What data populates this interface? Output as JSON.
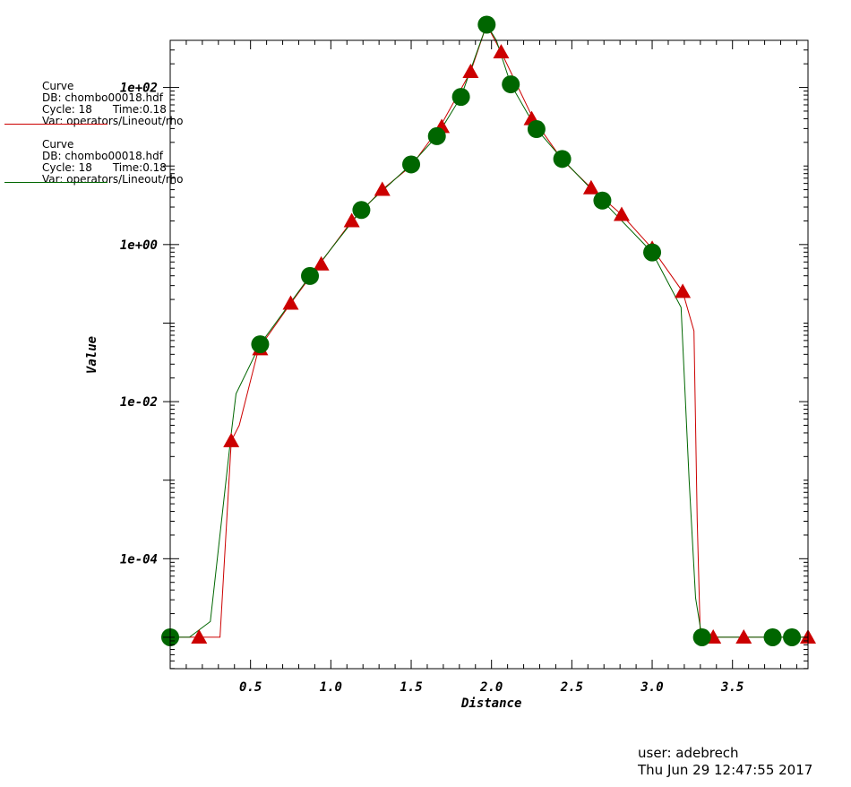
{
  "legend": [
    {
      "title": "Curve",
      "db": "DB: chombo00018.hdf",
      "cycle": "Cycle: 18",
      "time": "Time:0.18",
      "var": "Var: operators/Lineout/rho",
      "color": "#cc0000"
    },
    {
      "title": "Curve",
      "db": "DB: chombo00018.hdf",
      "cycle": "Cycle: 18",
      "time": "Time:0.18",
      "var": "Var: operators/Lineout/rho",
      "color": "#006600"
    }
  ],
  "footer": {
    "user": "user: adebrech",
    "datetime": "Thu Jun 29 12:47:55 2017"
  },
  "chart_data": {
    "type": "line",
    "xlabel": "Distance",
    "ylabel": "Value",
    "xlim": [
      0.0,
      3.97
    ],
    "ylim_log10": [
      -5.4,
      2.6
    ],
    "yscale": "log",
    "xticks": [
      0.5,
      1.0,
      1.5,
      2.0,
      2.5,
      3.0,
      3.5
    ],
    "xtick_labels": [
      "0.5",
      "1.0",
      "1.5",
      "2.0",
      "2.5",
      "3.0",
      "3.5"
    ],
    "yticks_log10": [
      -4,
      -2,
      0,
      2
    ],
    "ytick_labels": [
      "1e-04",
      "1e-02",
      "1e+00",
      "1e+02"
    ],
    "grid": false,
    "series": [
      {
        "color": "#cc0000",
        "marker": "triangle",
        "x": [
          0.0,
          0.18,
          0.31,
          0.38,
          0.43,
          0.55,
          0.75,
          0.93,
          1.13,
          1.32,
          1.5,
          1.68,
          1.87,
          1.97,
          2.06,
          2.26,
          2.44,
          2.62,
          2.81,
          3.0,
          3.19,
          3.26,
          3.28,
          3.3,
          3.38,
          3.57,
          3.75,
          3.88,
          3.97
        ],
        "y_log10": [
          -5.0,
          -5.0,
          -5.0,
          -2.5,
          -2.3,
          -1.33,
          -0.75,
          -0.25,
          0.3,
          0.7,
          1.0,
          1.5,
          2.2,
          2.8,
          2.45,
          1.6,
          1.08,
          0.72,
          0.38,
          -0.05,
          -0.6,
          -1.1,
          -3.5,
          -5.0,
          -5.0,
          -5.0,
          -5.0,
          -5.0,
          -5.0
        ],
        "marker_x": [
          0.18,
          0.38,
          0.56,
          0.75,
          0.94,
          1.13,
          1.32,
          1.69,
          1.87,
          2.06,
          2.25,
          2.62,
          2.81,
          3.0,
          3.19,
          3.38,
          3.57,
          3.97
        ],
        "marker_y_log10": [
          -5.0,
          -2.5,
          -1.33,
          -0.75,
          -0.25,
          0.3,
          0.7,
          1.5,
          2.2,
          2.45,
          1.6,
          0.72,
          0.38,
          -0.05,
          -0.6,
          -5.0,
          -5.0,
          -5.0
        ]
      },
      {
        "color": "#006600",
        "marker": "circle",
        "x": [
          0.0,
          0.12,
          0.25,
          0.38,
          0.41,
          0.56,
          0.87,
          1.19,
          1.5,
          1.66,
          1.81,
          1.97,
          2.03,
          2.12,
          2.28,
          2.44,
          2.69,
          3.0,
          3.18,
          3.23,
          3.27,
          3.31,
          3.75,
          3.87,
          3.97
        ],
        "y_log10": [
          -5.0,
          -5.0,
          -4.8,
          -2.4,
          -1.9,
          -1.27,
          -0.4,
          0.44,
          1.02,
          1.38,
          1.88,
          2.8,
          2.6,
          2.04,
          1.47,
          1.09,
          0.56,
          -0.1,
          -0.8,
          -3.0,
          -4.5,
          -5.0,
          -5.0,
          -5.0,
          -5.0
        ],
        "marker_x": [
          0.0,
          0.56,
          0.87,
          1.19,
          1.5,
          1.66,
          1.81,
          1.97,
          2.12,
          2.28,
          2.44,
          2.69,
          3.0,
          3.31,
          3.75,
          3.87
        ],
        "marker_y_log10": [
          -5.0,
          -1.27,
          -0.4,
          0.44,
          1.02,
          1.38,
          1.88,
          2.8,
          2.04,
          1.47,
          1.09,
          0.56,
          -0.1,
          -5.0,
          -5.0,
          -5.0
        ]
      }
    ]
  }
}
